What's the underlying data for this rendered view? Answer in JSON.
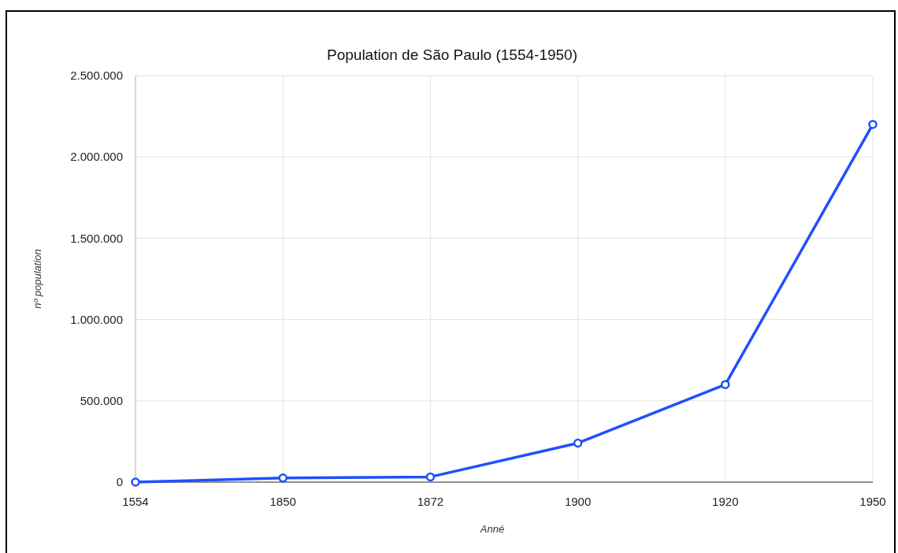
{
  "chart_data": {
    "type": "line",
    "title": "Population de São Paulo (1554-1950)",
    "xlabel": "Anné",
    "ylabel": "nº population",
    "categories": [
      "1554",
      "1850",
      "1872",
      "1900",
      "1920",
      "1950"
    ],
    "series": [
      {
        "color": "#1f4fff",
        "values": [
          0,
          25000,
          32000,
          240000,
          600000,
          2200000
        ]
      }
    ],
    "ylim": [
      0,
      2500000
    ],
    "yticks": [
      {
        "value": 0,
        "label": "0"
      },
      {
        "value": 500000,
        "label": "500.000"
      },
      {
        "value": 1000000,
        "label": "1.000.000"
      },
      {
        "value": 1500000,
        "label": "1.500.000"
      },
      {
        "value": 2000000,
        "label": "2.000.000"
      },
      {
        "value": 2500000,
        "label": "2.500.000"
      }
    ],
    "grid": true,
    "marker": "circle",
    "line_style": "solid"
  }
}
